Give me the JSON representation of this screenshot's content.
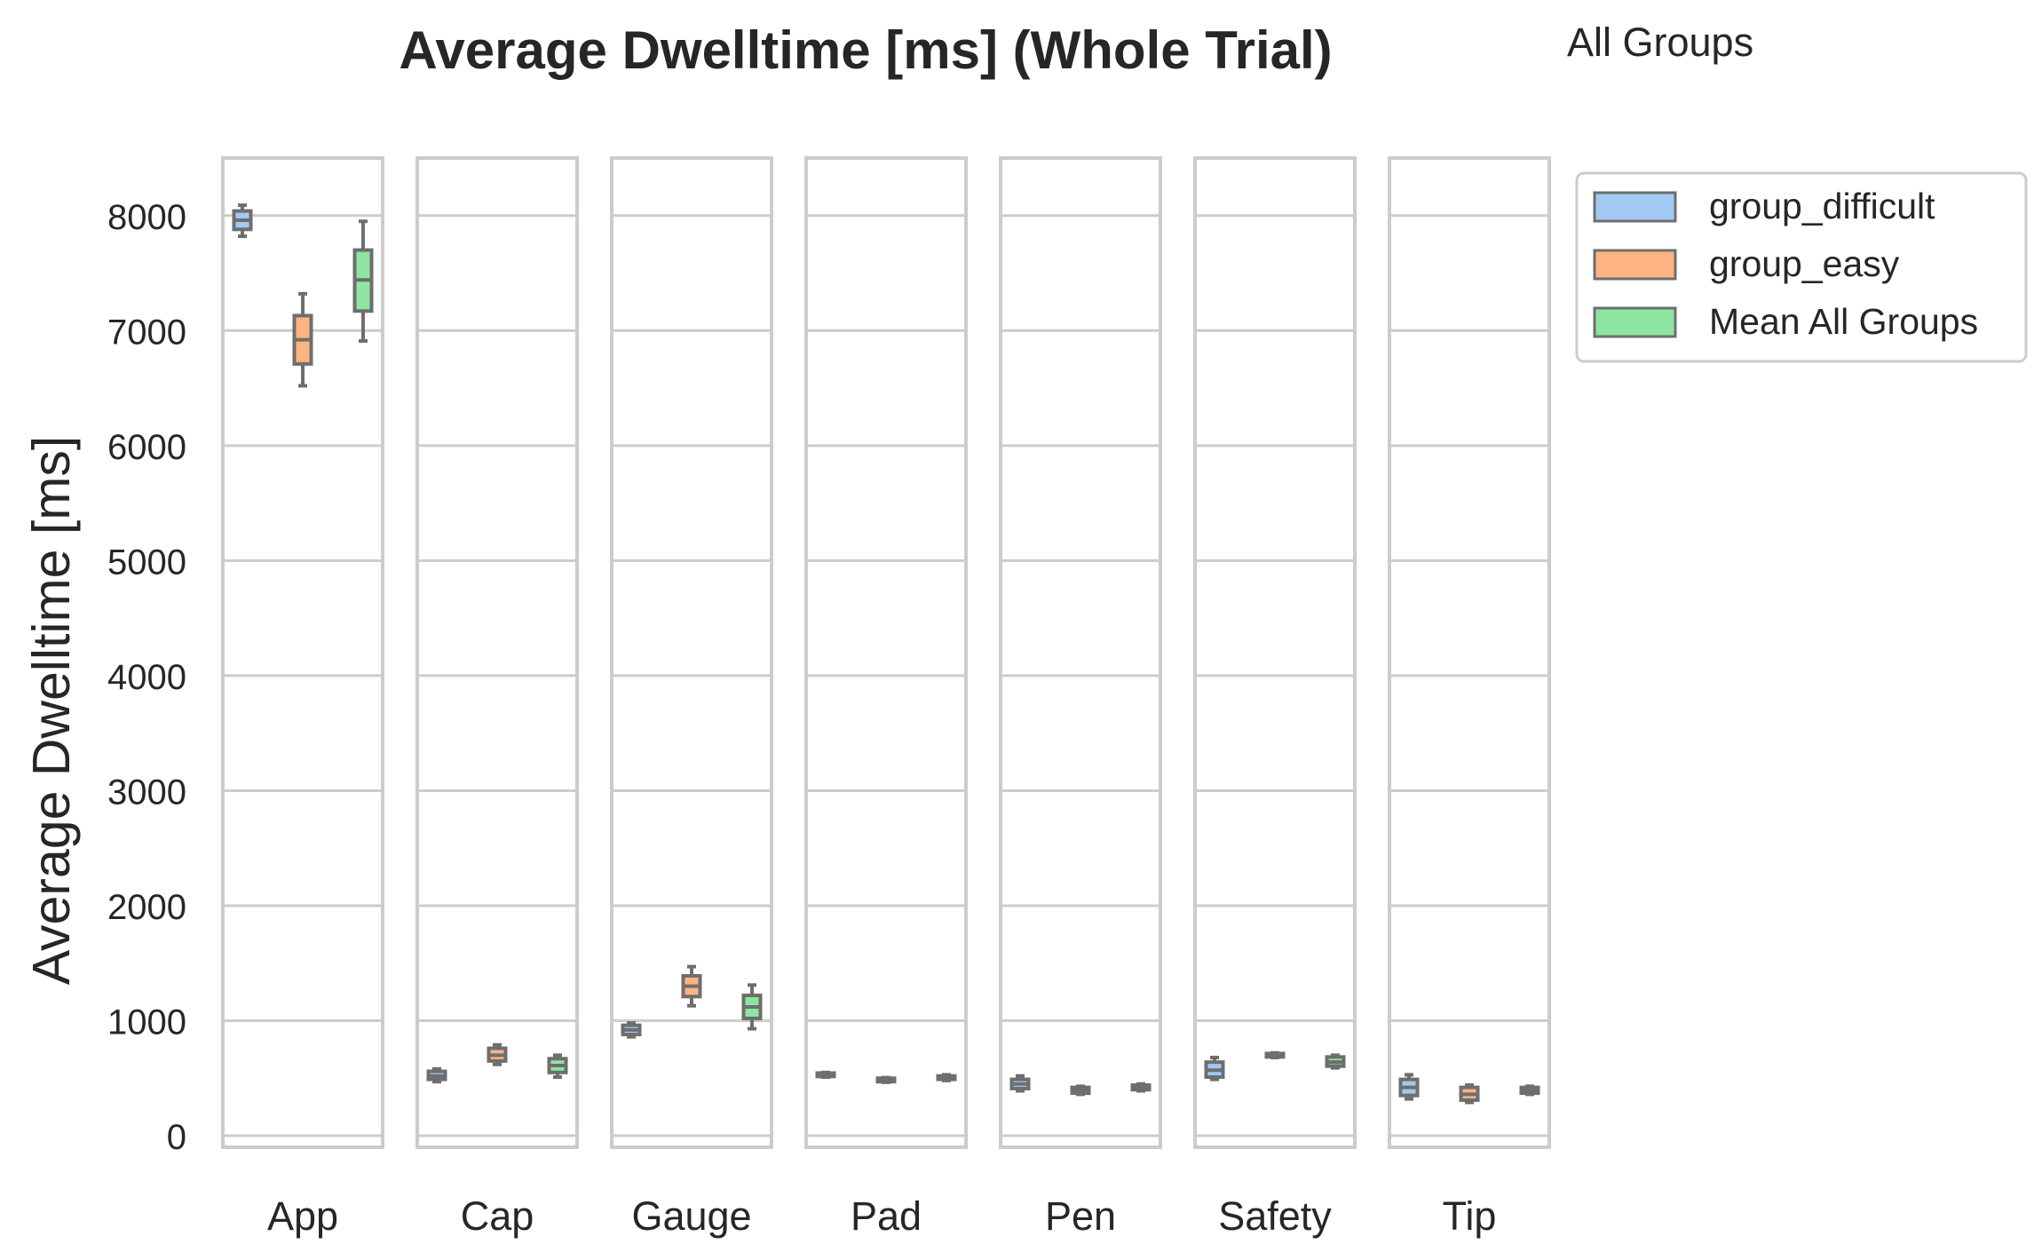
{
  "chart_data": {
    "type": "box",
    "title": "Average Dwelltime [ms] (Whole Trial)",
    "subtitle": "All Groups",
    "ylabel": "Average Dwelltime [ms]",
    "ylim": [
      -100,
      8500
    ],
    "yticks": [
      0,
      1000,
      2000,
      3000,
      4000,
      5000,
      6000,
      7000,
      8000
    ],
    "grid": true,
    "legend_position": "upper-right-outside",
    "colors": {
      "group_difficult": "#a1c9f4",
      "group_easy": "#ffb482",
      "Mean All Groups": "#8de5a1",
      "box_edge": "#6e6e6e",
      "panel_border": "#cccccc",
      "grid": "#cccccc"
    },
    "series": [
      {
        "name": "group_difficult"
      },
      {
        "name": "group_easy"
      },
      {
        "name": "Mean All Groups"
      }
    ],
    "panels": [
      {
        "category": "App",
        "boxes": [
          {
            "series": "group_difficult",
            "whislo": 7820,
            "q1": 7880,
            "med": 7960,
            "q3": 8040,
            "whishi": 8090
          },
          {
            "series": "group_easy",
            "whislo": 6520,
            "q1": 6710,
            "med": 6920,
            "q3": 7130,
            "whishi": 7320
          },
          {
            "series": "Mean All Groups",
            "whislo": 6910,
            "q1": 7170,
            "med": 7440,
            "q3": 7700,
            "whishi": 7950
          }
        ]
      },
      {
        "category": "Cap",
        "boxes": [
          {
            "series": "group_difficult",
            "whislo": 470,
            "q1": 490,
            "med": 520,
            "q3": 560,
            "whishi": 580
          },
          {
            "series": "group_easy",
            "whislo": 620,
            "q1": 650,
            "med": 700,
            "q3": 760,
            "whishi": 790
          },
          {
            "series": "Mean All Groups",
            "whislo": 510,
            "q1": 550,
            "med": 610,
            "q3": 670,
            "whishi": 700
          }
        ]
      },
      {
        "category": "Gauge",
        "boxes": [
          {
            "series": "group_difficult",
            "whislo": 860,
            "q1": 880,
            "med": 920,
            "q3": 960,
            "whishi": 980
          },
          {
            "series": "group_easy",
            "whislo": 1130,
            "q1": 1210,
            "med": 1300,
            "q3": 1390,
            "whishi": 1470
          },
          {
            "series": "Mean All Groups",
            "whislo": 930,
            "q1": 1020,
            "med": 1120,
            "q3": 1220,
            "whishi": 1310
          }
        ]
      },
      {
        "category": "Pad",
        "boxes": [
          {
            "series": "group_difficult",
            "whislo": 510,
            "q1": 515,
            "med": 530,
            "q3": 545,
            "whishi": 550
          },
          {
            "series": "group_easy",
            "whislo": 465,
            "q1": 470,
            "med": 485,
            "q3": 500,
            "whishi": 505
          },
          {
            "series": "Mean All Groups",
            "whislo": 480,
            "q1": 490,
            "med": 505,
            "q3": 520,
            "whishi": 530
          }
        ]
      },
      {
        "category": "Pen",
        "boxes": [
          {
            "series": "group_difficult",
            "whislo": 390,
            "q1": 410,
            "med": 450,
            "q3": 490,
            "whishi": 520
          },
          {
            "series": "group_easy",
            "whislo": 360,
            "q1": 370,
            "med": 395,
            "q3": 420,
            "whishi": 430
          },
          {
            "series": "Mean All Groups",
            "whislo": 390,
            "q1": 400,
            "med": 420,
            "q3": 440,
            "whishi": 450
          }
        ]
      },
      {
        "category": "Safety",
        "boxes": [
          {
            "series": "group_difficult",
            "whislo": 490,
            "q1": 510,
            "med": 570,
            "q3": 640,
            "whishi": 680
          },
          {
            "series": "group_easy",
            "whislo": 680,
            "q1": 685,
            "med": 700,
            "q3": 715,
            "whishi": 720
          },
          {
            "series": "Mean All Groups",
            "whislo": 590,
            "q1": 605,
            "med": 640,
            "q3": 685,
            "whishi": 700
          }
        ]
      },
      {
        "category": "Tip",
        "boxes": [
          {
            "series": "group_difficult",
            "whislo": 320,
            "q1": 350,
            "med": 420,
            "q3": 490,
            "whishi": 530
          },
          {
            "series": "group_easy",
            "whislo": 290,
            "q1": 310,
            "med": 360,
            "q3": 420,
            "whishi": 440
          },
          {
            "series": "Mean All Groups",
            "whislo": 360,
            "q1": 370,
            "med": 395,
            "q3": 420,
            "whishi": 430
          }
        ]
      }
    ]
  }
}
